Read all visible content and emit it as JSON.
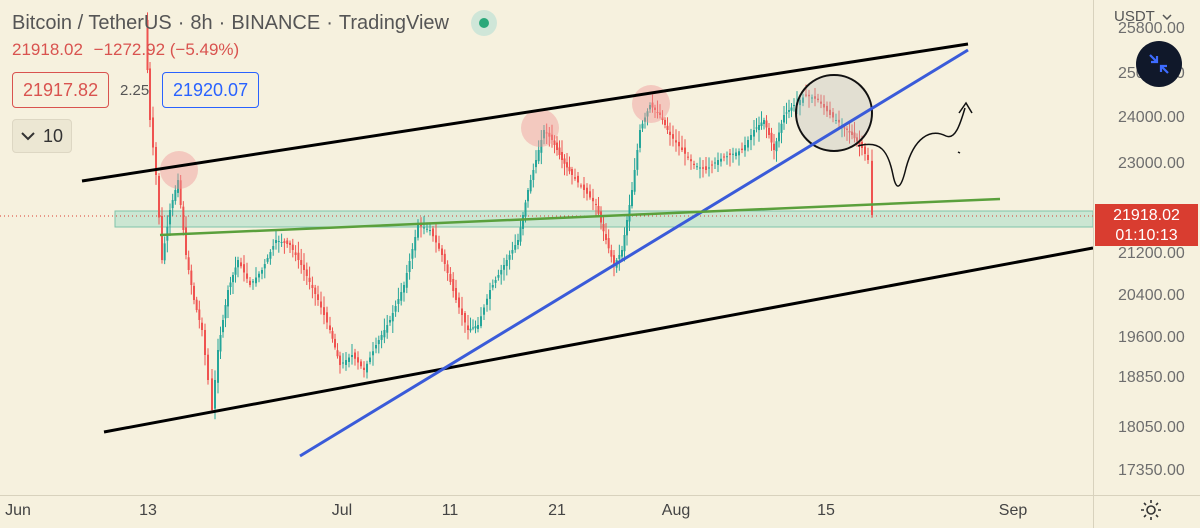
{
  "header": {
    "symbol": "Bitcoin / TetherUS",
    "interval": "8h",
    "exchange": "BINANCE",
    "platform": "TradingView",
    "title_separator": "·",
    "last_close": "21918.02",
    "change": "−1272.92 (−5.49%)",
    "bid": "21917.82",
    "spread": "2.25",
    "ask": "21920.07",
    "indicator_toggle_value": "10"
  },
  "price_scale": {
    "currency": "USDT",
    "ticks": [
      "25800.00",
      "25000.00",
      "24000.00",
      "23000.00",
      "21200.00",
      "20400.00",
      "19600.00",
      "18850.00",
      "18050.00",
      "17350.00"
    ],
    "last_price": "21918.02",
    "countdown": "01:10:13"
  },
  "time_axis": {
    "labels": [
      "Jun",
      "13",
      "Jul",
      "11",
      "21",
      "Aug",
      "15",
      "Sep"
    ]
  },
  "colors": {
    "background": "#f6f1de",
    "bull_candle": "#26a69a",
    "bear_candle": "#ef5350",
    "channel_line": "#000000",
    "trend_line": "#3a5bd9",
    "ma_line": "#5aa03c",
    "support_zone": "#a8dcc9",
    "last_price": "#d93d30"
  },
  "icons": {
    "expand": "collapse-arrows-icon",
    "settings": "gear-icon",
    "chevron": "chevron-down-icon",
    "live": "live-status-dot-icon"
  }
}
